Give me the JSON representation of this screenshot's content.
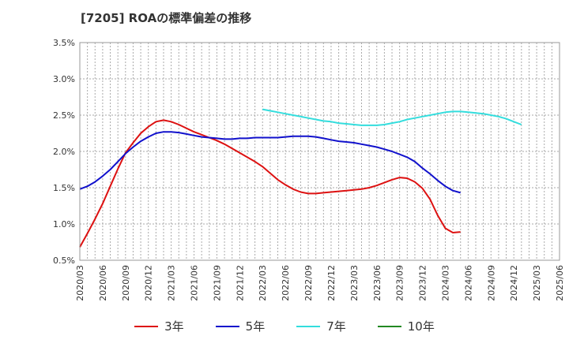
{
  "title": "[7205]  ROAの標準偏差の推移",
  "chart_data": {
    "type": "line",
    "title": "[7205]  ROAの標準偏差の推移",
    "xlabel": "",
    "ylabel": "",
    "ylim": [
      0.5,
      3.5
    ],
    "y_ticks": [
      "0.5%",
      "1.0%",
      "1.5%",
      "2.0%",
      "2.5%",
      "3.0%",
      "3.5%"
    ],
    "y_tick_values": [
      0.5,
      1.0,
      1.5,
      2.0,
      2.5,
      3.0,
      3.5
    ],
    "x_ticks": [
      "2020/03",
      "2020/06",
      "2020/09",
      "2020/12",
      "2021/03",
      "2021/06",
      "2021/09",
      "2021/12",
      "2022/03",
      "2022/06",
      "2022/09",
      "2022/12",
      "2023/03",
      "2023/06",
      "2023/09",
      "2023/12",
      "2024/03",
      "2024/06",
      "2024/09",
      "2024/12",
      "2025/03",
      "2025/06"
    ],
    "grid": true,
    "legend_position": "bottom",
    "series": [
      {
        "name": "3年",
        "color": "#dd1111",
        "x_start_index": 0,
        "values": [
          0.68,
          0.87,
          1.07,
          1.28,
          1.52,
          1.76,
          1.98,
          2.12,
          2.25,
          2.34,
          2.41,
          2.43,
          2.41,
          2.37,
          2.32,
          2.27,
          2.23,
          2.19,
          2.15,
          2.1,
          2.04,
          1.98,
          1.92,
          1.86,
          1.79,
          1.7,
          1.61,
          1.54,
          1.48,
          1.44,
          1.42,
          1.42,
          1.43,
          1.44,
          1.45,
          1.46,
          1.47,
          1.48,
          1.5,
          1.53,
          1.57,
          1.61,
          1.64,
          1.63,
          1.58,
          1.49,
          1.34,
          1.12,
          0.94,
          0.88,
          0.89
        ]
      },
      {
        "name": "5年",
        "color": "#1111cc",
        "x_start_index": 0,
        "values": [
          1.48,
          1.52,
          1.58,
          1.66,
          1.75,
          1.86,
          1.97,
          2.06,
          2.14,
          2.2,
          2.25,
          2.27,
          2.27,
          2.26,
          2.24,
          2.22,
          2.2,
          2.19,
          2.18,
          2.17,
          2.17,
          2.18,
          2.18,
          2.19,
          2.19,
          2.19,
          2.19,
          2.2,
          2.21,
          2.21,
          2.21,
          2.2,
          2.18,
          2.16,
          2.14,
          2.13,
          2.12,
          2.1,
          2.08,
          2.06,
          2.03,
          2.0,
          1.96,
          1.92,
          1.86,
          1.77,
          1.69,
          1.6,
          1.52,
          1.46,
          1.43
        ]
      },
      {
        "name": "7年",
        "color": "#33dddd",
        "x_start_index": 24,
        "values": [
          2.58,
          2.56,
          2.54,
          2.52,
          2.5,
          2.48,
          2.46,
          2.44,
          2.42,
          2.41,
          2.39,
          2.38,
          2.37,
          2.36,
          2.36,
          2.36,
          2.37,
          2.39,
          2.41,
          2.44,
          2.46,
          2.48,
          2.5,
          2.52,
          2.54,
          2.55,
          2.55,
          2.54,
          2.53,
          2.52,
          2.5,
          2.48,
          2.45,
          2.41,
          2.37
        ]
      },
      {
        "name": "10年",
        "color": "#228822",
        "x_start_index": 0,
        "values": []
      }
    ]
  }
}
